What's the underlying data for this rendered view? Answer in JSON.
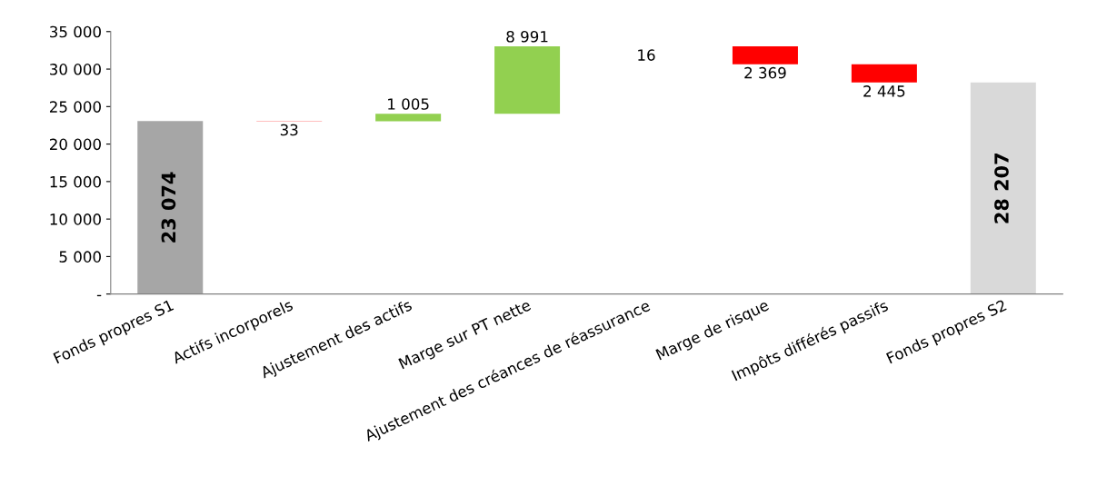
{
  "chart_data": {
    "type": "bar",
    "categories": [
      "Fonds propres S1",
      "Actifs incorporels",
      "Ajustement des actifs",
      "Marge sur PT nette",
      "Ajustement des créances de réassurance",
      "Marge de risque",
      "Impôts différés passifs",
      "Fonds propres S2"
    ],
    "values": [
      23074,
      -33,
      1005,
      8991,
      -16,
      -2369,
      -2445,
      28207
    ],
    "base": [
      0,
      23074,
      23041,
      24046,
      33037,
      33021,
      30652,
      0
    ],
    "colors": [
      "#a6a6a6",
      "#ff0000",
      "#92d050",
      "#92d050",
      "#ff0000",
      "#ff0000",
      "#ff0000",
      "#d9d9d9"
    ],
    "value_labels": [
      "23 074",
      "33",
      "1 005",
      "8 991",
      "16",
      "2 369",
      "2 445",
      "28 207"
    ],
    "ylim": [
      0,
      35000
    ],
    "yticks": [
      {
        "value": 0,
        "label": "-"
      },
      {
        "value": 5000,
        "label": "5 000"
      },
      {
        "value": 10000,
        "label": "10 000"
      },
      {
        "value": 15000,
        "label": "15 000"
      },
      {
        "value": 20000,
        "label": "20 000"
      },
      {
        "value": 25000,
        "label": "25 000"
      },
      {
        "value": 30000,
        "label": "30 000"
      },
      {
        "value": 35000,
        "label": "35 000"
      }
    ],
    "grid": false,
    "legend": false
  }
}
